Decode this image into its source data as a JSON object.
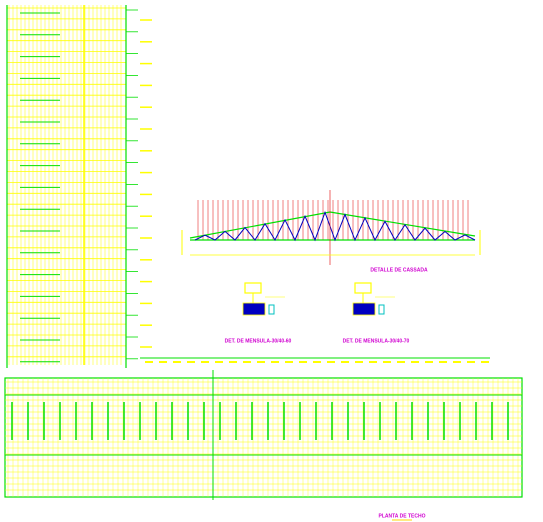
{
  "labels": {
    "detail_title": "DETALLE DE CASSADA",
    "bracket_1": "DET. DE MENSULA-30/40-60",
    "bracket_2": "DET. DE MENSULA-30/40-70",
    "plan_title": "PLANTA DE TECHO"
  }
}
